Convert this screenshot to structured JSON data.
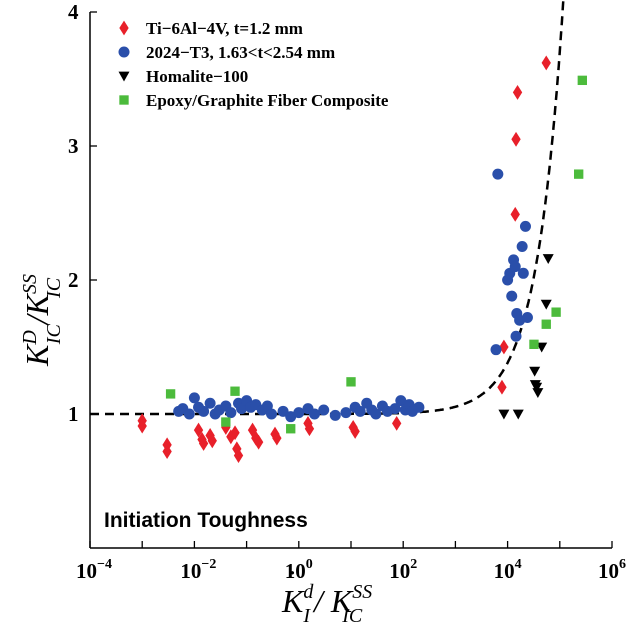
{
  "chart_data": {
    "type": "scatter",
    "xscale": "log",
    "xlim": [
      0.0001,
      1000000
    ],
    "ylim": [
      0,
      4
    ],
    "x_ticks": [
      0.0001,
      0.01,
      1,
      100,
      10000,
      1000000
    ],
    "x_tick_labels": [
      {
        "base": "10",
        "exp": "−4"
      },
      {
        "base": "10",
        "exp": "−2"
      },
      {
        "base": "10",
        "exp": "0"
      },
      {
        "base": "10",
        "exp": "2"
      },
      {
        "base": "10",
        "exp": "4"
      },
      {
        "base": "10",
        "exp": "6"
      }
    ],
    "y_ticks": [
      1,
      2,
      3,
      4
    ],
    "y_tick_labels": [
      "1",
      "2",
      "3",
      "4"
    ],
    "xlabel": {
      "main1": "K",
      "sup1": "d",
      "sub1": "I",
      "sep": "/ K",
      "sup2": "SS",
      "sub2": "IC",
      "dot": "˙"
    },
    "ylabel": {
      "main1": "K",
      "sup1": "D",
      "sub1": "IC",
      "sep": "/K",
      "sup2": "SS",
      "sub2": "IC"
    },
    "annotation": "Initiation Toughness",
    "legend_position": "top-left",
    "grid": false,
    "series": [
      {
        "name": "Ti−6Al−4V, t=1.2 mm",
        "marker": "diamond",
        "color": "#e8202a",
        "points": [
          [
            0.001,
            0.95
          ],
          [
            0.001,
            0.91
          ],
          [
            0.003,
            0.77
          ],
          [
            0.003,
            0.72
          ],
          [
            0.012,
            0.88
          ],
          [
            0.014,
            0.81
          ],
          [
            0.015,
            0.78
          ],
          [
            0.02,
            0.84
          ],
          [
            0.022,
            0.8
          ],
          [
            0.04,
            0.9
          ],
          [
            0.05,
            0.83
          ],
          [
            0.06,
            0.86
          ],
          [
            0.065,
            0.74
          ],
          [
            0.07,
            0.69
          ],
          [
            0.13,
            0.88
          ],
          [
            0.15,
            0.82
          ],
          [
            0.17,
            0.79
          ],
          [
            0.35,
            0.85
          ],
          [
            0.38,
            0.82
          ],
          [
            1.5,
            0.93
          ],
          [
            1.6,
            0.89
          ],
          [
            11,
            0.9
          ],
          [
            12,
            0.87
          ],
          [
            75,
            0.93
          ],
          [
            7800,
            1.2
          ],
          [
            8500,
            1.5
          ],
          [
            14000,
            2.49
          ],
          [
            14500,
            3.05
          ],
          [
            15500,
            3.4
          ],
          [
            55000,
            3.62
          ]
        ]
      },
      {
        "name": "2024−T3, 1.63<t<2.54 mm",
        "marker": "circle",
        "color": "#2a4faa",
        "points": [
          [
            0.005,
            1.02
          ],
          [
            0.006,
            1.04
          ],
          [
            0.008,
            1.0
          ],
          [
            0.01,
            1.12
          ],
          [
            0.012,
            1.05
          ],
          [
            0.015,
            1.02
          ],
          [
            0.02,
            1.08
          ],
          [
            0.025,
            1.0
          ],
          [
            0.03,
            1.03
          ],
          [
            0.04,
            1.06
          ],
          [
            0.05,
            1.01
          ],
          [
            0.07,
            1.08
          ],
          [
            0.08,
            1.04
          ],
          [
            0.1,
            1.1
          ],
          [
            0.12,
            1.05
          ],
          [
            0.15,
            1.07
          ],
          [
            0.2,
            1.03
          ],
          [
            0.25,
            1.06
          ],
          [
            0.3,
            1.0
          ],
          [
            0.5,
            1.02
          ],
          [
            0.7,
            0.98
          ],
          [
            1.0,
            1.01
          ],
          [
            1.5,
            1.04
          ],
          [
            2.0,
            1.0
          ],
          [
            3.0,
            1.03
          ],
          [
            5.0,
            0.99
          ],
          [
            8.0,
            1.01
          ],
          [
            12,
            1.05
          ],
          [
            15,
            1.02
          ],
          [
            20,
            1.08
          ],
          [
            25,
            1.03
          ],
          [
            30,
            1.0
          ],
          [
            40,
            1.06
          ],
          [
            50,
            1.02
          ],
          [
            70,
            1.04
          ],
          [
            90,
            1.1
          ],
          [
            110,
            1.03
          ],
          [
            130,
            1.07
          ],
          [
            150,
            1.02
          ],
          [
            200,
            1.05
          ],
          [
            6000,
            1.48
          ],
          [
            6500,
            2.79
          ],
          [
            10000,
            2.0
          ],
          [
            11000,
            2.05
          ],
          [
            12000,
            1.88
          ],
          [
            13000,
            2.15
          ],
          [
            14000,
            2.1
          ],
          [
            15000,
            1.75
          ],
          [
            17000,
            1.7
          ],
          [
            19000,
            2.25
          ],
          [
            20000,
            2.05
          ],
          [
            22000,
            2.4
          ],
          [
            24000,
            1.72
          ],
          [
            14500,
            1.58
          ]
        ]
      },
      {
        "name": "Homalite−100",
        "marker": "triangle-down",
        "color": "#000000",
        "points": [
          [
            8500,
            1.0
          ],
          [
            16000,
            1.0
          ],
          [
            33000,
            1.32
          ],
          [
            34000,
            1.22
          ],
          [
            36000,
            1.2
          ],
          [
            38000,
            1.16
          ],
          [
            45000,
            1.5
          ],
          [
            55000,
            1.82
          ],
          [
            60000,
            2.16
          ]
        ]
      },
      {
        "name": "Epoxy/Graphite Fiber Composite",
        "marker": "square",
        "color": "#4cbb3c",
        "points": [
          [
            0.0035,
            1.15
          ],
          [
            0.04,
            0.94
          ],
          [
            0.06,
            1.17
          ],
          [
            0.7,
            0.89
          ],
          [
            10,
            1.24
          ],
          [
            32000,
            1.52
          ],
          [
            55000,
            1.67
          ],
          [
            85000,
            1.76
          ],
          [
            230000,
            2.79
          ],
          [
            270000,
            3.49
          ]
        ]
      }
    ],
    "fit_curve": {
      "style": "dashed",
      "color": "#000000",
      "description_visible": false
    }
  }
}
